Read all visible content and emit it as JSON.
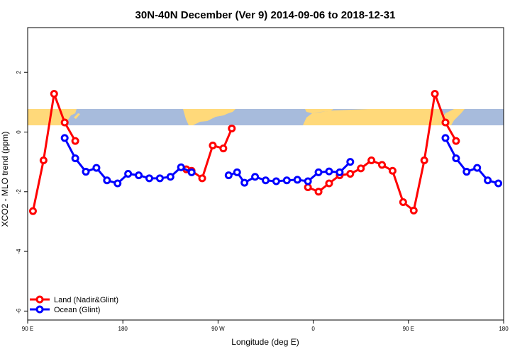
{
  "chart_data": {
    "type": "line",
    "title": "30N-40N December (Ver 9)   2014-09-06 to 2018-12-31",
    "xlabel": "Longitude (deg E)",
    "ylabel": "XCO2 - MLO trend (ppm)",
    "xlim": [
      0,
      450
    ],
    "ylim": [
      -6.3,
      3.5
    ],
    "x_ticks": [
      {
        "pos": 0,
        "label": "90 E"
      },
      {
        "pos": 90,
        "label": "180"
      },
      {
        "pos": 180,
        "label": "90 W"
      },
      {
        "pos": 270,
        "label": "0"
      },
      {
        "pos": 360,
        "label": "90 E"
      },
      {
        "pos": 450,
        "label": "180"
      }
    ],
    "y_ticks": [
      {
        "value": 2,
        "label": "2"
      },
      {
        "value": 0,
        "label": "0"
      },
      {
        "value": -2,
        "label": "-2"
      },
      {
        "value": -4,
        "label": "-4"
      },
      {
        "value": -6,
        "label": "-6"
      }
    ],
    "grid": false,
    "legend_position": "bottom-left",
    "map_band": {
      "y_range": [
        0.35,
        0.9
      ],
      "ocean_color": "#a7bbdc",
      "land_color": "#ffd97a"
    },
    "series": [
      {
        "name": "Land (Nadir&Glint)",
        "color": "#ff0000",
        "segments": [
          [
            [
              5,
              -2.65
            ],
            [
              15,
              -0.95
            ],
            [
              25,
              1.28
            ],
            [
              35,
              0.32
            ],
            [
              45,
              -0.3
            ]
          ],
          [
            [
              150,
              -1.25
            ],
            [
              155,
              -1.3
            ],
            [
              165,
              -1.55
            ],
            [
              175,
              -0.45
            ],
            [
              185,
              -0.55
            ],
            [
              193,
              0.12
            ]
          ],
          [
            [
              265,
              -1.85
            ],
            [
              275,
              -2.0
            ],
            [
              285,
              -1.72
            ],
            [
              295,
              -1.45
            ],
            [
              305,
              -1.4
            ],
            [
              315,
              -1.22
            ],
            [
              325,
              -0.95
            ],
            [
              335,
              -1.1
            ],
            [
              345,
              -1.3
            ],
            [
              355,
              -2.35
            ],
            [
              365,
              -2.63
            ],
            [
              375,
              -0.95
            ],
            [
              385,
              1.28
            ],
            [
              395,
              0.32
            ],
            [
              405,
              -0.3
            ]
          ]
        ]
      },
      {
        "name": "Ocean (Glint)",
        "color": "#0000ff",
        "segments": [
          [
            [
              35,
              -0.2
            ],
            [
              45,
              -0.88
            ],
            [
              55,
              -1.33
            ],
            [
              65,
              -1.2
            ],
            [
              75,
              -1.62
            ],
            [
              85,
              -1.72
            ],
            [
              95,
              -1.4
            ],
            [
              105,
              -1.45
            ],
            [
              115,
              -1.55
            ],
            [
              125,
              -1.55
            ],
            [
              135,
              -1.5
            ],
            [
              145,
              -1.18
            ],
            [
              155,
              -1.35
            ]
          ],
          [
            [
              190,
              -1.45
            ],
            [
              198,
              -1.35
            ],
            [
              205,
              -1.7
            ],
            [
              215,
              -1.5
            ],
            [
              225,
              -1.62
            ],
            [
              235,
              -1.65
            ],
            [
              245,
              -1.62
            ],
            [
              255,
              -1.6
            ],
            [
              265,
              -1.65
            ],
            [
              275,
              -1.35
            ],
            [
              285,
              -1.32
            ],
            [
              295,
              -1.35
            ],
            [
              305,
              -1.0
            ]
          ],
          [
            [
              395,
              -0.2
            ],
            [
              405,
              -0.88
            ],
            [
              415,
              -1.33
            ],
            [
              425,
              -1.2
            ],
            [
              435,
              -1.62
            ],
            [
              445,
              -1.72
            ]
          ]
        ]
      }
    ]
  }
}
